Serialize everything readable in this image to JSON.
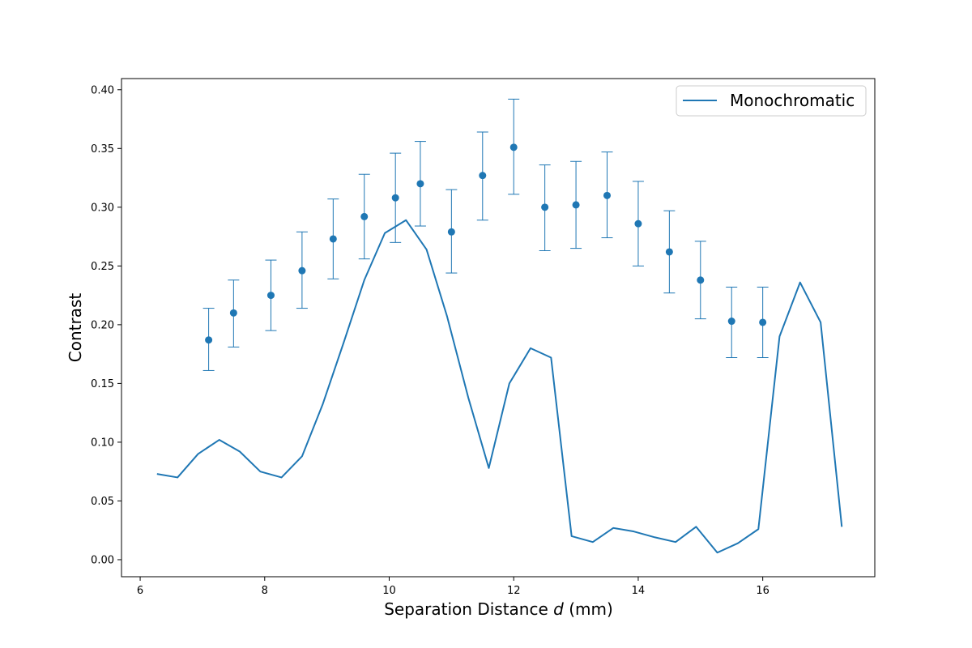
{
  "chart_data": {
    "type": "line",
    "title": "",
    "xlabel": "Separation Distance",
    "xlabel_symbol": "d",
    "xlabel_unit": "(mm)",
    "ylabel": "Contrast",
    "xlim": [
      5.7,
      17.8
    ],
    "ylim": [
      -0.0145,
      0.4095
    ],
    "xticks": [
      6,
      8,
      10,
      12,
      14,
      16
    ],
    "yticks": [
      0.0,
      0.05,
      0.1,
      0.15,
      0.2,
      0.25,
      0.3,
      0.35,
      0.4
    ],
    "grid": false,
    "legend_position": "top-right",
    "color": "#1f77b4",
    "series": [
      {
        "name": "Monochromatic",
        "kind": "line",
        "x": [
          6.27,
          6.6,
          6.93,
          7.27,
          7.6,
          7.93,
          8.27,
          8.6,
          8.93,
          9.27,
          9.6,
          9.93,
          10.27,
          10.6,
          10.93,
          11.27,
          11.6,
          11.93,
          12.27,
          12.6,
          12.93,
          13.27,
          13.6,
          13.93,
          14.27,
          14.6,
          14.93,
          15.27,
          15.6,
          15.93,
          16.27,
          16.6,
          16.93,
          17.27
        ],
        "y": [
          0.073,
          0.07,
          0.09,
          0.102,
          0.092,
          0.075,
          0.07,
          0.088,
          0.132,
          0.185,
          0.238,
          0.278,
          0.289,
          0.264,
          0.207,
          0.138,
          0.078,
          0.15,
          0.18,
          0.172,
          0.02,
          0.015,
          0.027,
          0.024,
          0.019,
          0.015,
          0.028,
          0.006,
          0.014,
          0.026,
          0.19,
          0.236,
          0.202,
          0.028
        ]
      },
      {
        "kind": "errorbar",
        "x": [
          7.1,
          7.5,
          8.1,
          8.6,
          9.1,
          9.6,
          10.1,
          10.5,
          11.0,
          11.5,
          12.0,
          12.5,
          13.0,
          13.5,
          14.0,
          14.5,
          15.0,
          15.5,
          16.0
        ],
        "y": [
          0.187,
          0.21,
          0.225,
          0.246,
          0.273,
          0.292,
          0.308,
          0.32,
          0.279,
          0.327,
          0.351,
          0.3,
          0.302,
          0.31,
          0.286,
          0.262,
          0.238,
          0.203,
          0.202
        ],
        "yerr_low": [
          0.161,
          0.181,
          0.195,
          0.214,
          0.239,
          0.256,
          0.27,
          0.284,
          0.244,
          0.289,
          0.311,
          0.263,
          0.265,
          0.274,
          0.25,
          0.227,
          0.205,
          0.172,
          0.172
        ],
        "yerr_high": [
          0.214,
          0.238,
          0.255,
          0.279,
          0.307,
          0.328,
          0.346,
          0.356,
          0.315,
          0.364,
          0.392,
          0.336,
          0.339,
          0.347,
          0.322,
          0.297,
          0.271,
          0.232,
          0.232
        ]
      }
    ]
  }
}
